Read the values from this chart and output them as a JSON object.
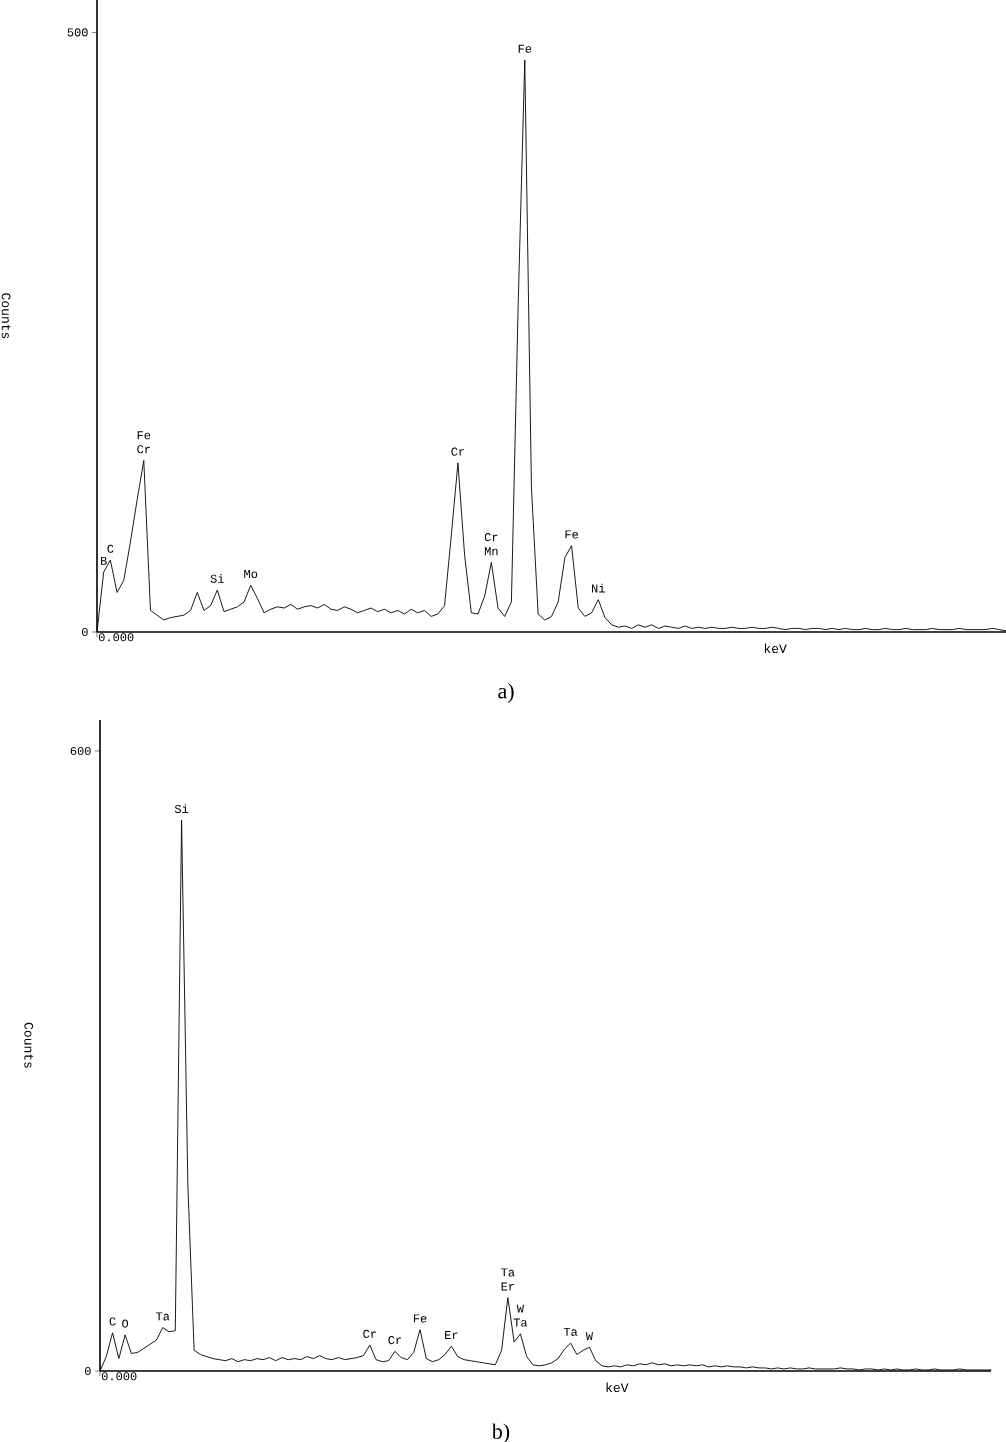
{
  "chart_data": [
    {
      "type": "line",
      "xlabel": "keV",
      "ylabel": "Counts",
      "ylim": [
        0,
        527
      ],
      "yticks": [
        {
          "value": 0,
          "label": "0"
        },
        {
          "value": 500,
          "label": "500"
        }
      ],
      "marker": "none",
      "line_style": "solid",
      "categories": [
        null,
        null,
        null,
        null,
        null,
        null,
        null,
        null,
        null,
        null,
        null,
        null,
        null,
        null,
        null,
        null,
        null,
        null,
        null,
        null,
        null,
        null,
        null,
        null,
        null,
        null,
        null,
        null,
        null,
        null,
        null,
        null,
        null,
        null,
        null,
        null,
        null,
        null,
        null,
        null,
        null,
        null,
        null,
        null,
        null,
        null,
        null,
        null,
        null,
        null,
        null,
        null,
        null,
        null,
        null,
        null,
        null,
        null,
        null,
        null,
        null,
        null,
        null,
        null,
        null,
        null,
        null,
        null,
        null,
        null,
        null,
        null,
        null,
        null,
        null,
        null,
        null,
        null,
        null,
        null,
        null,
        null,
        null,
        null,
        null,
        null,
        null,
        null,
        null,
        null,
        null,
        null,
        null,
        null,
        null,
        null,
        null,
        null,
        null,
        null,
        null,
        null,
        null,
        null,
        null,
        null,
        null,
        null,
        null,
        null,
        null,
        null,
        null,
        null,
        null,
        null,
        null,
        null,
        null,
        null,
        null,
        null,
        null,
        null,
        null,
        null,
        null,
        null,
        null,
        null,
        null,
        null,
        null,
        null,
        null,
        null,
        null
      ],
      "series": [
        {
          "color": "#000000",
          "values": [
            0,
            50,
            60,
            33,
            43,
            75,
            110,
            143,
            18,
            14,
            10,
            12,
            13,
            14,
            18,
            33,
            18,
            22,
            35,
            17,
            19,
            21,
            25,
            39,
            28,
            16,
            19,
            21,
            20,
            23,
            19,
            21,
            22,
            20,
            23,
            19,
            18,
            21,
            19,
            16,
            18,
            20,
            17,
            19,
            16,
            18,
            15,
            19,
            16,
            18,
            13,
            15,
            22,
            80,
            141,
            64,
            16,
            15,
            30,
            58,
            20,
            13,
            25,
            270,
            477,
            120,
            15,
            10,
            13,
            25,
            62,
            72,
            20,
            13,
            16,
            27,
            12,
            6,
            4,
            5,
            3,
            6,
            4,
            6,
            3,
            5,
            4,
            3,
            5,
            3,
            4,
            3,
            4,
            3,
            3,
            4,
            3,
            3,
            4,
            3,
            3,
            4,
            3,
            2,
            3,
            3,
            2,
            3,
            3,
            2,
            3,
            2,
            3,
            2,
            2,
            3,
            2,
            2,
            3,
            2,
            2,
            3,
            2,
            2,
            2,
            3,
            2,
            2,
            2,
            3,
            2,
            2,
            2,
            2,
            3,
            2,
            1
          ]
        }
      ],
      "annotations": [
        {
          "text": "B",
          "y": 50
        },
        {
          "text": "C",
          "y": 60
        },
        {
          "text": "Cr",
          "y": 143
        },
        {
          "text": "Fe",
          "y": 143
        },
        {
          "text": "Si",
          "y": 35
        },
        {
          "text": "Mo",
          "y": 39
        },
        {
          "text": "Cr",
          "y": 141
        },
        {
          "text": "Mn",
          "y": 58
        },
        {
          "text": "Cr",
          "y": 58
        },
        {
          "text": "Fe",
          "y": 477
        },
        {
          "text": "Fe",
          "y": 72
        },
        {
          "text": "Ni",
          "y": 27
        },
        "0.000",
        "a)"
      ]
    },
    {
      "type": "line",
      "xlabel": "keV",
      "ylabel": "Counts",
      "ylim": [
        0,
        630
      ],
      "yticks": [
        {
          "value": 0,
          "label": "0"
        },
        {
          "value": 600,
          "label": "600"
        }
      ],
      "marker": "none",
      "line_style": "solid",
      "categories": [
        null,
        null,
        null,
        null,
        null,
        null,
        null,
        null,
        null,
        null,
        null,
        null,
        null,
        null,
        null,
        null,
        null,
        null,
        null,
        null,
        null,
        null,
        null,
        null,
        null,
        null,
        null,
        null,
        null,
        null,
        null,
        null,
        null,
        null,
        null,
        null,
        null,
        null,
        null,
        null,
        null,
        null,
        null,
        null,
        null,
        null,
        null,
        null,
        null,
        null,
        null,
        null,
        null,
        null,
        null,
        null,
        null,
        null,
        null,
        null,
        null,
        null,
        null,
        null,
        null,
        null,
        null,
        null,
        null,
        null,
        null,
        null,
        null,
        null,
        null,
        null,
        null,
        null,
        null,
        null,
        null,
        null,
        null,
        null,
        null,
        null,
        null,
        null,
        null,
        null,
        null,
        null,
        null,
        null,
        null,
        null,
        null,
        null,
        null,
        null,
        null,
        null,
        null,
        null,
        null,
        null,
        null,
        null,
        null,
        null,
        null,
        null,
        null,
        null,
        null,
        null,
        null,
        null,
        null,
        null,
        null,
        null,
        null,
        null,
        null,
        null,
        null,
        null,
        null,
        null,
        null,
        null,
        null,
        null,
        null,
        null,
        null,
        null,
        null,
        null,
        null,
        null,
        null
      ],
      "series": [
        {
          "color": "#000000",
          "values": [
            0,
            14,
            37,
            12,
            35,
            17,
            18,
            22,
            26,
            30,
            42,
            38,
            39,
            533,
            180,
            20,
            16,
            14,
            12,
            11,
            10,
            12,
            9,
            11,
            10,
            12,
            11,
            13,
            10,
            13,
            11,
            12,
            11,
            14,
            12,
            15,
            12,
            11,
            13,
            11,
            12,
            13,
            15,
            25,
            11,
            9,
            10,
            19,
            13,
            11,
            18,
            40,
            12,
            9,
            11,
            16,
            24,
            14,
            11,
            10,
            9,
            8,
            7,
            6,
            20,
            71,
            28,
            36,
            14,
            6,
            5,
            6,
            8,
            12,
            21,
            27,
            16,
            20,
            23,
            10,
            5,
            4,
            5,
            4,
            6,
            5,
            7,
            6,
            8,
            6,
            7,
            5,
            6,
            5,
            6,
            5,
            6,
            4,
            5,
            4,
            5,
            4,
            4,
            3,
            4,
            3,
            3,
            2,
            3,
            2,
            3,
            2,
            2,
            3,
            2,
            2,
            2,
            2,
            3,
            2,
            2,
            1,
            2,
            2,
            1,
            2,
            1,
            2,
            1,
            1,
            2,
            1,
            1,
            2,
            1,
            1,
            1,
            2,
            1,
            1,
            1,
            1,
            1
          ]
        }
      ],
      "annotations": [
        {
          "text": "C",
          "y": 37
        },
        {
          "text": "O",
          "y": 35
        },
        {
          "text": "Ta",
          "y": 42
        },
        {
          "text": "Si",
          "y": 533
        },
        {
          "text": "Cr",
          "y": 25
        },
        {
          "text": "Cr",
          "y": 19
        },
        {
          "text": "Fe",
          "y": 40
        },
        {
          "text": "Er",
          "y": 24
        },
        {
          "text": "Er",
          "y": 71
        },
        {
          "text": "Ta",
          "y": 71
        },
        {
          "text": "Ta",
          "y": 36
        },
        {
          "text": "W",
          "y": 36
        },
        {
          "text": "Ta",
          "y": 27
        },
        {
          "text": "W",
          "y": 23
        },
        "0.000",
        "b)"
      ]
    }
  ]
}
